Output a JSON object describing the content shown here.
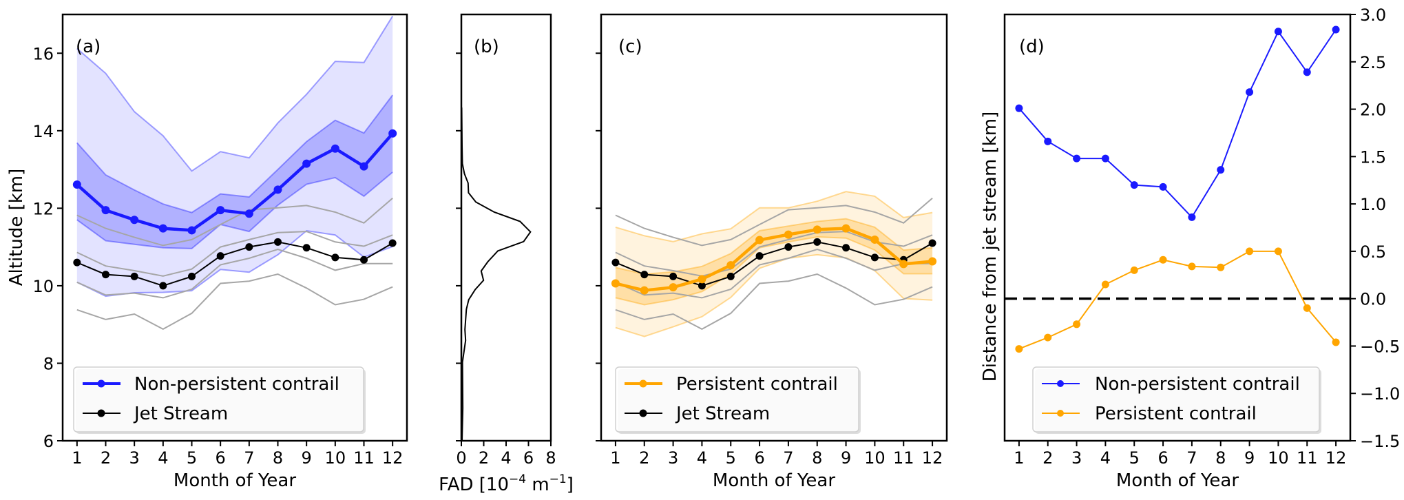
{
  "colors": {
    "non_persistent": "#1a1aff",
    "persistent": "#ffa500",
    "jet_stream": "#000000",
    "jet_bounds": "#a6a6a6",
    "zero_line": "#000000"
  },
  "chart_data": [
    {
      "type": "line",
      "panel_label": "(a)",
      "xlabel": "Month of Year",
      "ylabel": "Altitude [km]",
      "xlim": [
        0.5,
        12.5
      ],
      "ylim": [
        6,
        17
      ],
      "xticks": [
        1,
        2,
        3,
        4,
        5,
        6,
        7,
        8,
        9,
        10,
        11,
        12
      ],
      "yticks": [
        6,
        8,
        10,
        12,
        14,
        16
      ],
      "grid": false,
      "legend_position": "lower-left",
      "x": [
        1,
        2,
        3,
        4,
        5,
        6,
        7,
        8,
        9,
        10,
        11,
        12
      ],
      "series": [
        {
          "name": "Non-persistent contrail",
          "color": "#1a1aff",
          "values": [
            12.61,
            11.95,
            11.7,
            11.48,
            11.43,
            11.95,
            11.86,
            12.48,
            13.15,
            13.54,
            13.08,
            13.93
          ],
          "band_inner": {
            "upper": [
              13.69,
              12.86,
              12.47,
              12.11,
              11.89,
              12.37,
              12.29,
              13.0,
              13.72,
              14.27,
              13.94,
              14.92
            ],
            "lower": [
              11.7,
              11.16,
              11.07,
              10.98,
              10.96,
              11.58,
              11.4,
              12.08,
              12.62,
              12.79,
              12.31,
              12.93
            ]
          },
          "band_outer": {
            "upper": [
              16.12,
              15.48,
              14.49,
              13.87,
              12.96,
              13.46,
              13.3,
              14.2,
              14.94,
              15.79,
              15.76,
              16.96
            ],
            "lower": [
              10.09,
              9.73,
              9.82,
              9.83,
              9.87,
              10.42,
              10.35,
              10.8,
              11.42,
              11.31,
              10.74,
              11.01
            ]
          }
        },
        {
          "name": "Jet Stream",
          "color": "#000000",
          "values": [
            10.6,
            10.29,
            10.24,
            10.0,
            10.24,
            10.77,
            11.0,
            11.13,
            10.98,
            10.73,
            10.67,
            11.1
          ],
          "gray_lines": [
            [
              11.82,
              11.48,
              11.25,
              11.04,
              11.19,
              11.58,
              11.96,
              12.01,
              12.07,
              11.9,
              11.62,
              12.26
            ],
            [
              10.86,
              10.51,
              10.39,
              10.25,
              10.43,
              11.0,
              11.19,
              11.37,
              11.4,
              11.13,
              11.02,
              11.31
            ],
            [
              10.09,
              9.76,
              9.81,
              9.69,
              9.91,
              10.54,
              10.71,
              10.94,
              10.71,
              10.4,
              10.57,
              10.57
            ],
            [
              9.38,
              9.13,
              9.27,
              8.88,
              9.29,
              10.06,
              10.12,
              10.3,
              9.94,
              9.51,
              9.65,
              9.97
            ]
          ]
        }
      ]
    },
    {
      "type": "line",
      "panel_label": "(b)",
      "xlabel_main": "FAD [10",
      "xlabel_exp1": "−4",
      "xlabel_mid": " m",
      "xlabel_exp2": "−1",
      "xlabel_end": "]",
      "xlim": [
        0,
        8
      ],
      "ylim": [
        6,
        17
      ],
      "xticks": [
        0,
        2,
        4,
        6,
        8
      ],
      "yticks": [
        6,
        8,
        10,
        12,
        14,
        16
      ],
      "grid": false,
      "series": [
        {
          "color": "#000000",
          "x": [
            0.06,
            0.13,
            0.1,
            0.38,
            0.32,
            0.45,
            0.66,
            1.24,
            1.98,
            1.77,
            2.37,
            3.26,
            5.56,
            6.18,
            5.25,
            2.94,
            1.3,
            0.64,
            0.6,
            0.28,
            0.09,
            0.06,
            0.03
          ],
          "y": [
            6.0,
            6.84,
            8.03,
            8.59,
            8.87,
            9.39,
            9.64,
            9.9,
            10.14,
            10.38,
            10.62,
            10.9,
            11.14,
            11.39,
            11.66,
            11.9,
            12.16,
            12.4,
            12.65,
            12.89,
            13.15,
            13.61,
            14.6
          ]
        }
      ]
    },
    {
      "type": "line",
      "panel_label": "(c)",
      "xlabel": "Month of Year",
      "xlim": [
        0.5,
        12.5
      ],
      "ylim": [
        6,
        17
      ],
      "xticks": [
        1,
        2,
        3,
        4,
        5,
        6,
        7,
        8,
        9,
        10,
        11,
        12
      ],
      "yticks": [
        6,
        8,
        10,
        12,
        14,
        16
      ],
      "grid": false,
      "legend_position": "lower-left",
      "x": [
        1,
        2,
        3,
        4,
        5,
        6,
        7,
        8,
        9,
        10,
        11,
        12
      ],
      "series": [
        {
          "name": "Persistent contrail",
          "color": "#ffa500",
          "values": [
            10.06,
            9.88,
            9.96,
            10.17,
            10.53,
            11.18,
            11.32,
            11.45,
            11.48,
            11.19,
            10.56,
            10.63
          ],
          "band_inner": {
            "upper": [
              10.47,
              10.3,
              10.36,
              10.5,
              10.83,
              11.42,
              11.54,
              11.66,
              11.73,
              11.51,
              10.92,
              10.98
            ],
            "lower": [
              9.69,
              9.51,
              9.64,
              9.85,
              10.3,
              10.98,
              11.13,
              11.26,
              11.23,
              10.92,
              10.31,
              10.31
            ]
          },
          "band_outer": {
            "upper": [
              11.51,
              11.29,
              11.14,
              11.34,
              11.47,
              12.01,
              12.01,
              12.18,
              12.43,
              12.31,
              11.76,
              11.89
            ],
            "lower": [
              8.92,
              8.69,
              8.94,
              9.2,
              9.7,
              10.45,
              10.71,
              10.8,
              10.72,
              10.39,
              9.67,
              9.63
            ]
          }
        },
        {
          "name": "Jet Stream",
          "color": "#000000",
          "values": [
            10.6,
            10.29,
            10.24,
            10.0,
            10.24,
            10.77,
            11.0,
            11.13,
            10.98,
            10.73,
            10.67,
            11.1
          ],
          "gray_lines": [
            [
              11.82,
              11.48,
              11.25,
              11.04,
              11.19,
              11.58,
              11.96,
              12.01,
              12.07,
              11.9,
              11.62,
              12.26
            ],
            [
              10.86,
              10.51,
              10.39,
              10.25,
              10.43,
              11.0,
              11.19,
              11.37,
              11.4,
              11.13,
              11.02,
              11.31
            ],
            [
              10.09,
              9.76,
              9.81,
              9.69,
              9.91,
              10.54,
              10.71,
              10.94,
              10.71,
              10.4,
              10.57,
              10.57
            ],
            [
              9.38,
              9.13,
              9.27,
              8.88,
              9.29,
              10.06,
              10.12,
              10.3,
              9.94,
              9.51,
              9.65,
              9.97
            ]
          ]
        }
      ]
    },
    {
      "type": "line",
      "panel_label": "(d)",
      "xlabel": "Month of Year",
      "ylabel": "Distance from jet stream [km]",
      "xlim": [
        0.5,
        12.5
      ],
      "ylim": [
        -1.5,
        3.0
      ],
      "xticks": [
        1,
        2,
        3,
        4,
        5,
        6,
        7,
        8,
        9,
        10,
        11,
        12
      ],
      "yticks": [
        "−1.5",
        "−1.0",
        "−0.5",
        "0.0",
        "0.5",
        "1.0",
        "1.5",
        "2.0",
        "2.5",
        "3.0"
      ],
      "yaxis_side": "right",
      "reference_line": 0,
      "grid": false,
      "legend_position": "lower-left",
      "x": [
        1,
        2,
        3,
        4,
        5,
        6,
        7,
        8,
        9,
        10,
        11,
        12
      ],
      "series": [
        {
          "name": "Non-persistent contrail",
          "color": "#1a1aff",
          "values": [
            2.01,
            1.66,
            1.48,
            1.48,
            1.2,
            1.18,
            0.86,
            1.36,
            2.18,
            2.82,
            2.39,
            2.84
          ]
        },
        {
          "name": "Persistent contrail",
          "color": "#ffa500",
          "values": [
            -0.53,
            -0.41,
            -0.27,
            0.15,
            0.3,
            0.41,
            0.34,
            0.33,
            0.5,
            0.5,
            -0.1,
            -0.46
          ]
        }
      ]
    }
  ]
}
